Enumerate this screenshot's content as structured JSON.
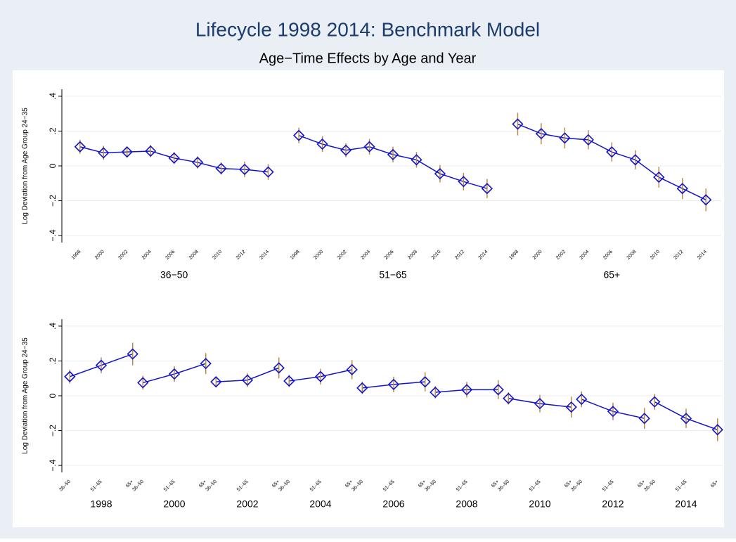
{
  "title": "Lifecycle 1998 2014: Benchmark Model",
  "subtitle": "Age−Time Effects by Age and Year",
  "chart_data": [
    {
      "type": "line",
      "ylabel": "Log Deviation from Age Group 24−35",
      "ylim": [
        -0.44,
        0.44
      ],
      "yticks": [
        {
          "value": -0.4,
          "label": "−.4"
        },
        {
          "value": -0.2,
          "label": "−.2"
        },
        0,
        {
          "value": 0.2,
          "label": ".2"
        },
        {
          "value": 0.4,
          "label": ".4"
        }
      ],
      "grid": true,
      "line_color": "#1414c8",
      "error_color": "#b98a4a",
      "groups": [
        {
          "name": "36−50",
          "categories": [
            "1998",
            "2000",
            "2002",
            "2004",
            "2006",
            "2008",
            "2010",
            "2012",
            "2014"
          ],
          "values": [
            0.11,
            0.075,
            0.08,
            0.085,
            0.045,
            0.02,
            -0.015,
            -0.02,
            -0.035
          ],
          "errors": [
            0.04,
            0.04,
            0.03,
            0.035,
            0.035,
            0.035,
            0.035,
            0.045,
            0.045
          ]
        },
        {
          "name": "51−65",
          "categories": [
            "1998",
            "2000",
            "2002",
            "2004",
            "2006",
            "2008",
            "2010",
            "2012",
            "2014"
          ],
          "values": [
            0.175,
            0.125,
            0.09,
            0.11,
            0.065,
            0.035,
            -0.045,
            -0.09,
            -0.13
          ],
          "errors": [
            0.045,
            0.045,
            0.04,
            0.045,
            0.045,
            0.045,
            0.05,
            0.05,
            0.055
          ]
        },
        {
          "name": "65+",
          "categories": [
            "1998",
            "2000",
            "2002",
            "2004",
            "2006",
            "2008",
            "2010",
            "2012",
            "2014"
          ],
          "values": [
            0.24,
            0.185,
            0.16,
            0.15,
            0.08,
            0.035,
            -0.065,
            -0.13,
            -0.195
          ],
          "errors": [
            0.065,
            0.06,
            0.06,
            0.055,
            0.055,
            0.055,
            0.06,
            0.06,
            0.065
          ]
        }
      ]
    },
    {
      "type": "line",
      "ylabel": "Log Deviation from Age Group 24−35",
      "ylim": [
        -0.44,
        0.44
      ],
      "yticks": [
        {
          "value": -0.4,
          "label": "−.4"
        },
        {
          "value": -0.2,
          "label": "−.2"
        },
        0,
        {
          "value": 0.2,
          "label": ".2"
        },
        {
          "value": 0.4,
          "label": ".4"
        }
      ],
      "grid": true,
      "line_color": "#1414c8",
      "error_color": "#b98a4a",
      "groups": [
        {
          "name": "1998",
          "categories": [
            "36–50",
            "51–65",
            "65+"
          ],
          "values": [
            0.11,
            0.175,
            0.24
          ],
          "errors": [
            0.04,
            0.045,
            0.065
          ]
        },
        {
          "name": "2000",
          "categories": [
            "36–50",
            "51–65",
            "65+"
          ],
          "values": [
            0.075,
            0.125,
            0.185
          ],
          "errors": [
            0.04,
            0.045,
            0.06
          ]
        },
        {
          "name": "2002",
          "categories": [
            "36–50",
            "51–65",
            "65+"
          ],
          "values": [
            0.08,
            0.09,
            0.16
          ],
          "errors": [
            0.03,
            0.04,
            0.06
          ]
        },
        {
          "name": "2004",
          "categories": [
            "36–50",
            "51–65",
            "65+"
          ],
          "values": [
            0.085,
            0.11,
            0.15
          ],
          "errors": [
            0.035,
            0.045,
            0.055
          ]
        },
        {
          "name": "2006",
          "categories": [
            "36–50",
            "51–65",
            "65+"
          ],
          "values": [
            0.045,
            0.065,
            0.08
          ],
          "errors": [
            0.035,
            0.045,
            0.055
          ]
        },
        {
          "name": "2008",
          "categories": [
            "36–50",
            "51–65",
            "65+"
          ],
          "values": [
            0.02,
            0.035,
            0.035
          ],
          "errors": [
            0.035,
            0.045,
            0.055
          ]
        },
        {
          "name": "2010",
          "categories": [
            "36–50",
            "51–65",
            "65+"
          ],
          "values": [
            -0.015,
            -0.045,
            -0.065
          ],
          "errors": [
            0.035,
            0.05,
            0.06
          ]
        },
        {
          "name": "2012",
          "categories": [
            "36–50",
            "51–65",
            "65+"
          ],
          "values": [
            -0.02,
            -0.09,
            -0.13
          ],
          "errors": [
            0.045,
            0.05,
            0.06
          ]
        },
        {
          "name": "2014",
          "categories": [
            "36–50",
            "51–65",
            "65+"
          ],
          "values": [
            -0.035,
            -0.13,
            -0.195
          ],
          "errors": [
            0.045,
            0.055,
            0.065
          ]
        }
      ]
    }
  ]
}
